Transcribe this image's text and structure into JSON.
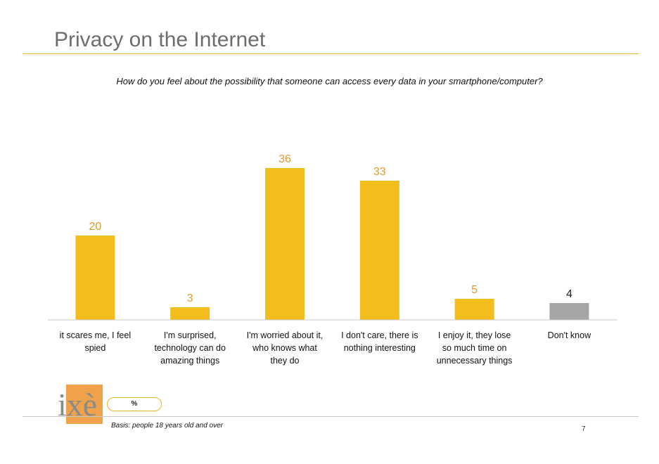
{
  "header": {
    "title": "Privacy on the Internet",
    "question": "How do you feel about the possibility that someone can access every data in your smartphone/computer?"
  },
  "chart_data": {
    "type": "bar",
    "categories": [
      [
        "it scares me, I feel",
        "spied"
      ],
      [
        "I'm surprised,",
        "technology can do",
        "amazing things"
      ],
      [
        "I'm worried about it,",
        "who knows what",
        "they do"
      ],
      [
        "I don't care, there is",
        "nothing interesting"
      ],
      [
        "I enjoy it, they lose",
        "so much time on",
        "unnecessary things"
      ],
      [
        "Don't know"
      ]
    ],
    "values": [
      20,
      3,
      36,
      33,
      5,
      4
    ],
    "data_labels": [
      "20",
      "3",
      "36",
      "33",
      "5",
      "4"
    ],
    "ylim": [
      0,
      40
    ],
    "grid": false,
    "colors": [
      "#f2bd1d",
      "#f2bd1d",
      "#f2bd1d",
      "#f2bd1d",
      "#f2bd1d",
      "#a6a6a6"
    ],
    "label_colors": [
      "#e39a2c",
      "#e39a2c",
      "#e39a2c",
      "#e39a2c",
      "#e39a2c",
      "#222222"
    ]
  },
  "footer": {
    "logo_text": "ixè",
    "unit_label": "%",
    "basis": "Basis: people 18 years old and over",
    "page_number": "7"
  },
  "colors": {
    "accent": "#e8b820",
    "logo_orange": "#f0a24a"
  }
}
